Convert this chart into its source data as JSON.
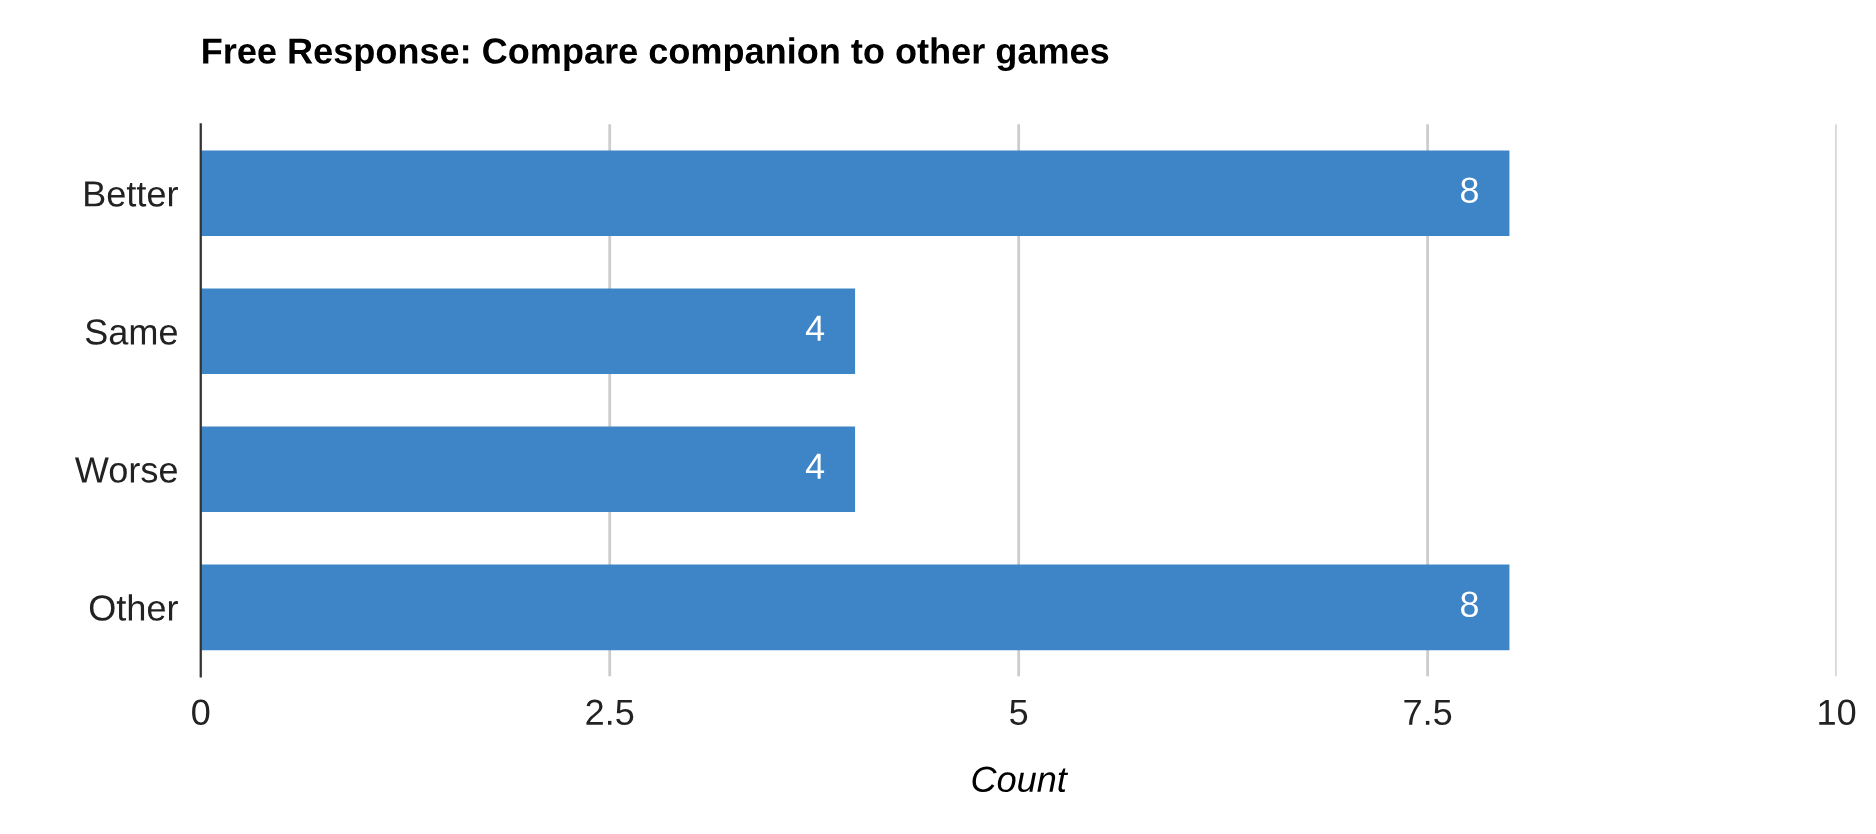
{
  "chart_data": {
    "type": "bar",
    "orientation": "horizontal",
    "title": "Free Response: Compare companion to other games",
    "xlabel": "Count",
    "categories": [
      "Better",
      "Same",
      "Worse",
      "Other"
    ],
    "values": [
      8,
      4,
      4,
      8
    ],
    "color": "#3d85c6",
    "xlim": [
      0,
      10
    ],
    "xticks": [
      0,
      2.5,
      5,
      7.5,
      10
    ],
    "grid": "x",
    "data_labels": true
  }
}
